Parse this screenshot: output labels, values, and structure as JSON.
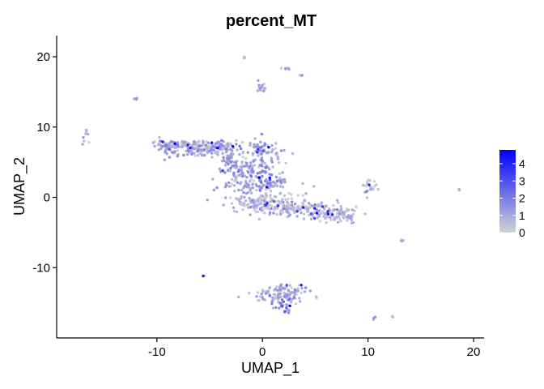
{
  "chart_data": {
    "type": "scatter",
    "title": "percent_MT",
    "xlabel": "UMAP_1",
    "ylabel": "UMAP_2",
    "xlim": [
      -19.5,
      21
    ],
    "ylim": [
      -20,
      23
    ],
    "x_ticks": [
      -10,
      0,
      10,
      20
    ],
    "y_ticks": [
      -10,
      0,
      10,
      20
    ],
    "x_tick_labels": [
      "-10",
      "0",
      "10",
      "20"
    ],
    "y_tick_labels": [
      "-10",
      "0",
      "10",
      "20"
    ],
    "grid": false,
    "color_scale": {
      "low_color": "#d3d3d3",
      "high_color": "#0000ff",
      "min": 0,
      "max": 4.8,
      "ticks": [
        0,
        1,
        2,
        3,
        4
      ],
      "tick_labels": [
        "0",
        "1",
        "2",
        "3",
        "4"
      ],
      "legend_position": "right"
    },
    "clusters": [
      {
        "cx": -7.5,
        "cy": 7.5,
        "sx": 1.4,
        "sy": 0.35,
        "n": 110,
        "mean": 0.7
      },
      {
        "cx": -4.2,
        "cy": 7.2,
        "sx": 1.2,
        "sy": 0.4,
        "n": 70,
        "mean": 0.8
      },
      {
        "cx": -8.8,
        "cy": 6.6,
        "sx": 0.5,
        "sy": 0.6,
        "n": 25,
        "mean": 0.6
      },
      {
        "cx": -6.0,
        "cy": 6.4,
        "sx": 1.0,
        "sy": 0.3,
        "n": 40,
        "mean": 0.9
      },
      {
        "cx": -3.0,
        "cy": 5.5,
        "sx": 0.6,
        "sy": 1.2,
        "n": 45,
        "mean": 0.9
      },
      {
        "cx": -2.5,
        "cy": 3.8,
        "sx": 0.8,
        "sy": 0.6,
        "n": 35,
        "mean": 1.1
      },
      {
        "cx": 0.0,
        "cy": 6.5,
        "sx": 0.9,
        "sy": 0.8,
        "n": 70,
        "mean": 0.9
      },
      {
        "cx": -0.3,
        "cy": 4.0,
        "sx": 0.8,
        "sy": 0.9,
        "n": 55,
        "mean": 1.3
      },
      {
        "cx": 1.2,
        "cy": 2.2,
        "sx": 0.5,
        "sy": 0.6,
        "n": 25,
        "mean": 1.1
      },
      {
        "cx": -0.6,
        "cy": 1.8,
        "sx": 1.8,
        "sy": 0.6,
        "n": 80,
        "mean": 0.9
      },
      {
        "cx": 0.4,
        "cy": -0.6,
        "sx": 1.8,
        "sy": 0.9,
        "n": 130,
        "mean": 0.5
      },
      {
        "cx": 3.5,
        "cy": -1.6,
        "sx": 2.0,
        "sy": 0.5,
        "n": 110,
        "mean": 0.35
      },
      {
        "cx": 6.5,
        "cy": -2.5,
        "sx": 1.4,
        "sy": 0.45,
        "n": 75,
        "mean": 0.35
      },
      {
        "cx": 8.2,
        "cy": -2.8,
        "sx": 0.5,
        "sy": 0.5,
        "n": 20,
        "mean": 0.3
      },
      {
        "cx": 1.5,
        "cy": -14.0,
        "sx": 1.3,
        "sy": 0.6,
        "n": 90,
        "mean": 0.55
      },
      {
        "cx": 2.5,
        "cy": -13.0,
        "sx": 0.8,
        "sy": 0.35,
        "n": 25,
        "mean": 0.9
      },
      {
        "cx": 1.8,
        "cy": -15.6,
        "sx": 0.5,
        "sy": 0.4,
        "n": 20,
        "mean": 1.4
      },
      {
        "cx": 10.2,
        "cy": 1.5,
        "sx": 0.35,
        "sy": 0.6,
        "n": 20,
        "mean": 0.3
      },
      {
        "cx": -0.2,
        "cy": 15.6,
        "sx": 0.3,
        "sy": 0.6,
        "n": 14,
        "mean": 0.6
      },
      {
        "cx": 2.3,
        "cy": 18.3,
        "sx": 0.2,
        "sy": 0.1,
        "n": 6,
        "mean": 0.5
      },
      {
        "cx": -1.7,
        "cy": 19.9,
        "sx": 0.1,
        "sy": 0.1,
        "n": 3,
        "mean": 0.8
      },
      {
        "cx": 3.7,
        "cy": 17.4,
        "sx": 0.1,
        "sy": 0.1,
        "n": 3,
        "mean": 0.8
      },
      {
        "cx": -12.0,
        "cy": 14.1,
        "sx": 0.15,
        "sy": 0.15,
        "n": 5,
        "mean": 0.5
      },
      {
        "cx": -16.8,
        "cy": 8.6,
        "sx": 0.2,
        "sy": 0.4,
        "n": 8,
        "mean": 0.6
      },
      {
        "cx": 13.3,
        "cy": -6.2,
        "sx": 0.1,
        "sy": 0.1,
        "n": 3,
        "mean": 0.5
      },
      {
        "cx": 18.6,
        "cy": 1.1,
        "sx": 0.1,
        "sy": 0.1,
        "n": 2,
        "mean": 0.4
      },
      {
        "cx": 10.5,
        "cy": -17.3,
        "sx": 0.1,
        "sy": 0.1,
        "n": 3,
        "mean": 0.5
      },
      {
        "cx": 12.2,
        "cy": -17.0,
        "sx": 0.1,
        "sy": 0.1,
        "n": 2,
        "mean": 0.4
      },
      {
        "cx": -5.6,
        "cy": -11.2,
        "sx": 0.1,
        "sy": 0.1,
        "n": 2,
        "mean": 0.4
      },
      {
        "cx": 5.0,
        "cy": -14.2,
        "sx": 0.1,
        "sy": 0.1,
        "n": 2,
        "mean": 0.4
      }
    ]
  }
}
